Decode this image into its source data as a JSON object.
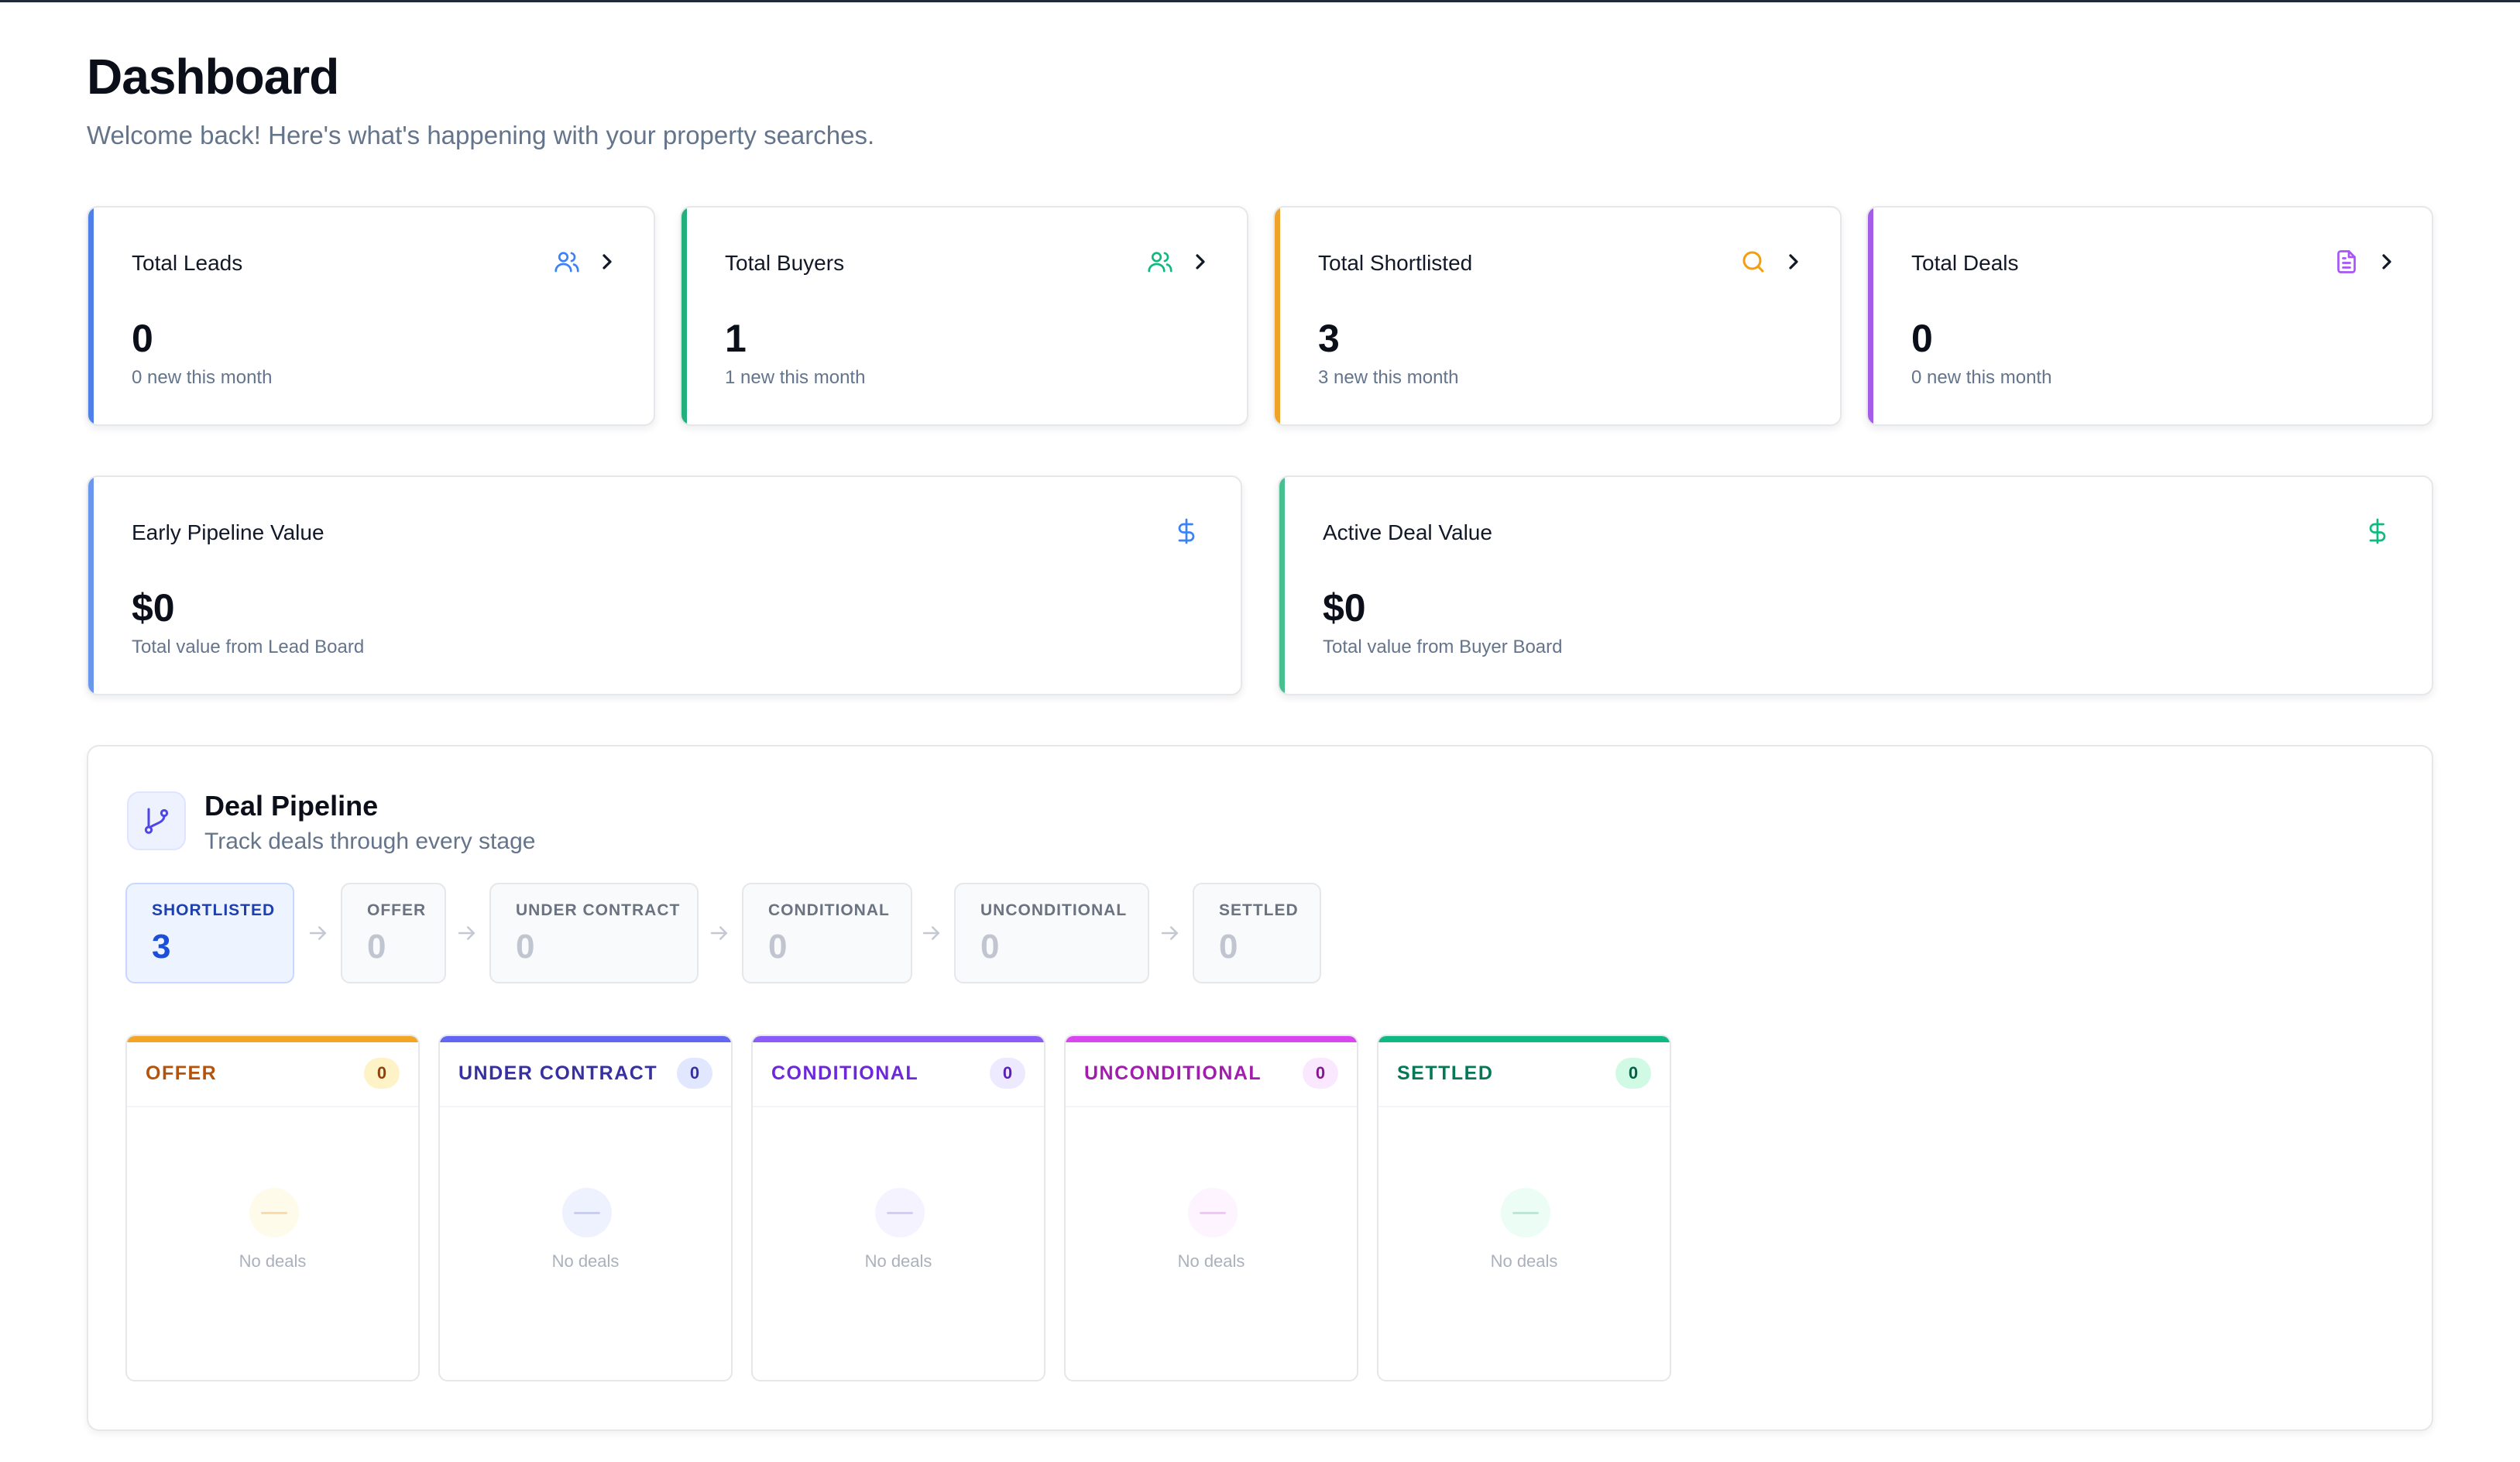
{
  "page": {
    "title": "Dashboard",
    "subtitle": "Welcome back! Here's what's happening with your property searches."
  },
  "stats": [
    {
      "label": "Total Leads",
      "value": "0",
      "sub": "0 new this month",
      "icon": "users-icon",
      "color": "#3b82f6"
    },
    {
      "label": "Total Buyers",
      "value": "1",
      "sub": "1 new this month",
      "icon": "users-icon",
      "color": "#10b981"
    },
    {
      "label": "Total Shortlisted",
      "value": "3",
      "sub": "3 new this month",
      "icon": "search-icon",
      "color": "#f59e0b"
    },
    {
      "label": "Total Deals",
      "value": "0",
      "sub": "0 new this month",
      "icon": "file-text-icon",
      "color": "#a855f7"
    }
  ],
  "values": [
    {
      "label": "Early Pipeline Value",
      "value": "$0",
      "sub": "Total value from Lead Board",
      "icon": "dollar-icon",
      "color": "#3b82f6"
    },
    {
      "label": "Active Deal Value",
      "value": "$0",
      "sub": "Total value from Buyer Board",
      "icon": "dollar-icon",
      "color": "#10b981"
    }
  ],
  "pipeline": {
    "title": "Deal Pipeline",
    "subtitle": "Track deals through every stage",
    "icon": "git-branch-icon",
    "stages": [
      {
        "label": "SHORTLISTED",
        "count": "3",
        "active": true
      },
      {
        "label": "OFFER",
        "count": "0",
        "active": false
      },
      {
        "label": "UNDER CONTRACT",
        "count": "0",
        "active": false
      },
      {
        "label": "CONDITIONAL",
        "count": "0",
        "active": false
      },
      {
        "label": "UNCONDITIONAL",
        "count": "0",
        "active": false
      },
      {
        "label": "SETTLED",
        "count": "0",
        "active": false
      }
    ],
    "columns": [
      {
        "title": "OFFER",
        "count": "0",
        "empty": "No deals",
        "color": "#f59e0b",
        "title_color": "#b45309",
        "badge_bg": "#fef3c7",
        "badge_fg": "#92400e",
        "circle_bg": "#fffbeb",
        "dash": "#fcd9a6"
      },
      {
        "title": "UNDER CONTRACT",
        "count": "0",
        "empty": "No deals",
        "color": "#6366f1",
        "title_color": "#3730a3",
        "badge_bg": "#e0e7ff",
        "badge_fg": "#3730a3",
        "circle_bg": "#eef2ff",
        "dash": "#c7cdf5"
      },
      {
        "title": "CONDITIONAL",
        "count": "0",
        "empty": "No deals",
        "color": "#8b5cf6",
        "title_color": "#6d28d9",
        "badge_bg": "#ede9fe",
        "badge_fg": "#5b21b6",
        "circle_bg": "#f5f3ff",
        "dash": "#d6cbf7"
      },
      {
        "title": "UNCONDITIONAL",
        "count": "0",
        "empty": "No deals",
        "color": "#d946ef",
        "title_color": "#a21caf",
        "badge_bg": "#fae8ff",
        "badge_fg": "#86198f",
        "circle_bg": "#fdf4ff",
        "dash": "#f1c6f7"
      },
      {
        "title": "SETTLED",
        "count": "0",
        "empty": "No deals",
        "color": "#10b981",
        "title_color": "#047857",
        "badge_bg": "#d1fae5",
        "badge_fg": "#065f46",
        "circle_bg": "#ecfdf5",
        "dash": "#b6ebd3"
      }
    ]
  }
}
